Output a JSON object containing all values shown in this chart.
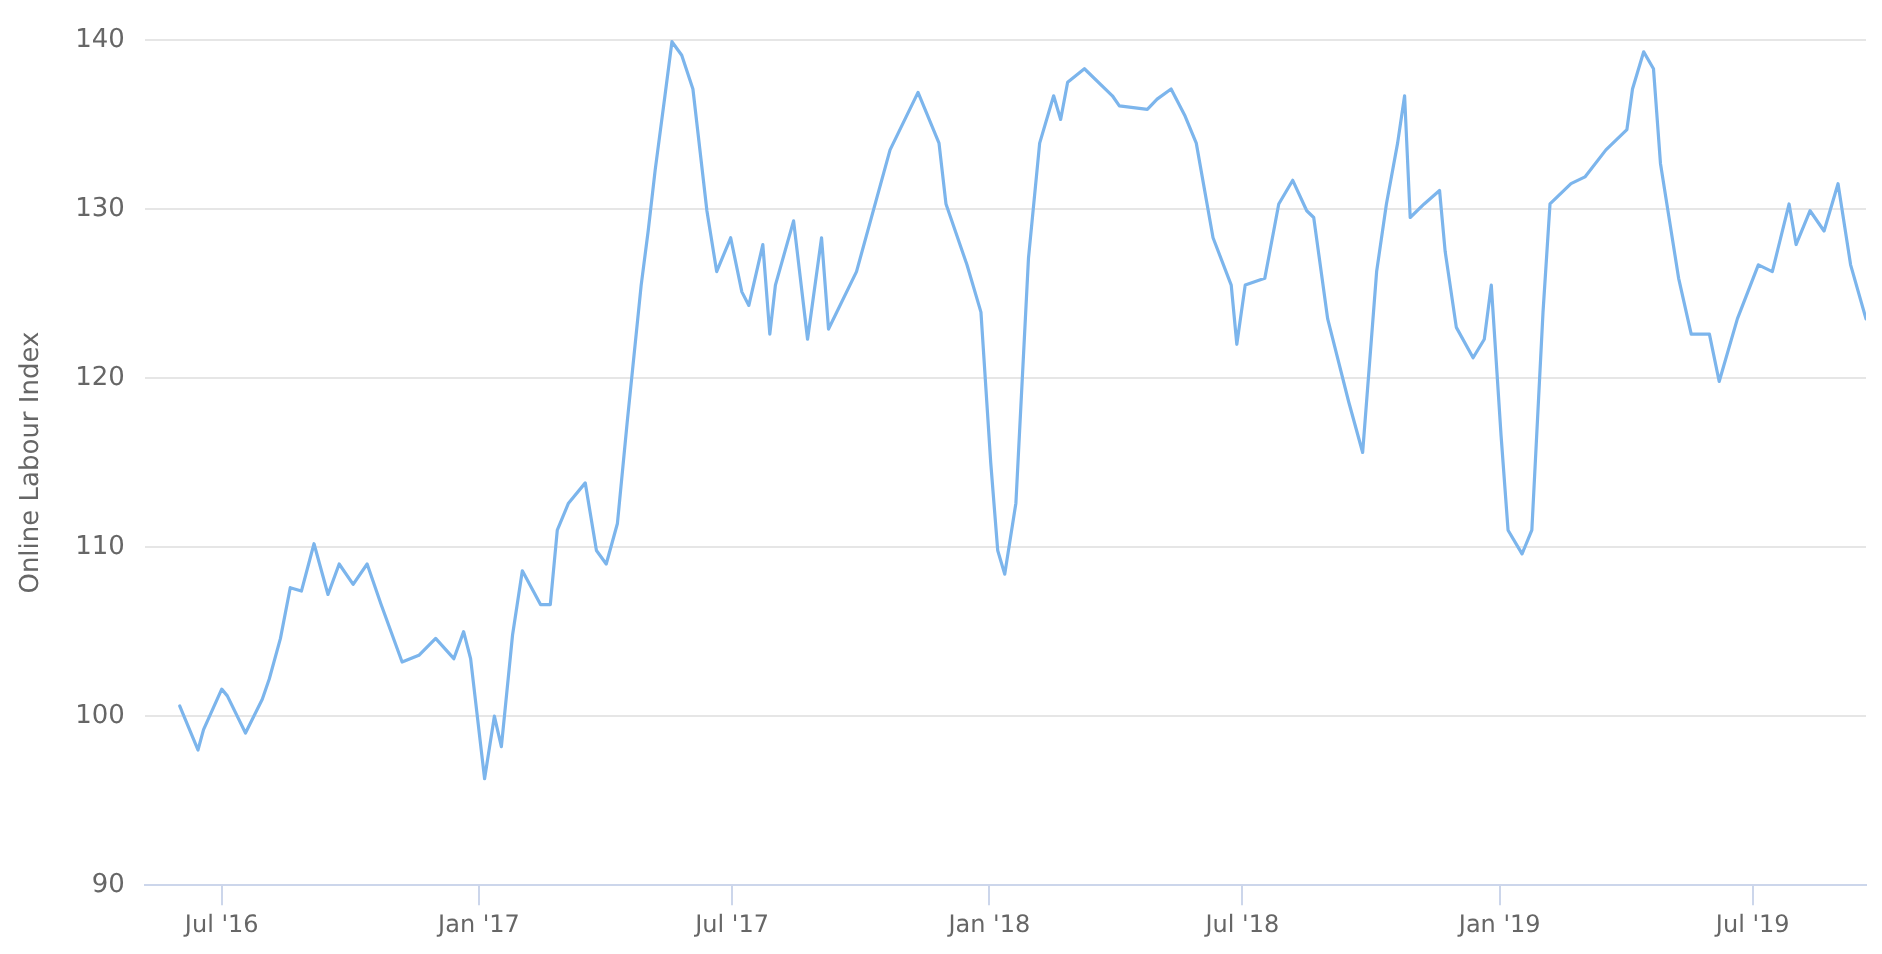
{
  "chart_data": {
    "type": "line",
    "ylabel": "Online Labour Index",
    "grid": "y",
    "legend": false,
    "marker": "none",
    "line_style": "solid",
    "xlim": [
      "2016-05-07",
      "2019-09-20"
    ],
    "ylim": [
      90,
      140
    ],
    "yticks": [
      90,
      100,
      110,
      120,
      130,
      140
    ],
    "xticks": [
      {
        "value": "2016-07-01",
        "label": "Jul '16"
      },
      {
        "value": "2017-01-01",
        "label": "Jan '17"
      },
      {
        "value": "2017-07-01",
        "label": "Jul '17"
      },
      {
        "value": "2018-01-01",
        "label": "Jan '18"
      },
      {
        "value": "2018-07-01",
        "label": "Jul '18"
      },
      {
        "value": "2019-01-01",
        "label": "Jan '19"
      },
      {
        "value": "2019-07-01",
        "label": "Jul '19"
      }
    ],
    "x": [
      "2016-06-01",
      "2016-06-14",
      "2016-06-18",
      "2016-07-01",
      "2016-07-05",
      "2016-07-18",
      "2016-07-30",
      "2016-08-04",
      "2016-08-12",
      "2016-08-19",
      "2016-08-27",
      "2016-09-05",
      "2016-09-15",
      "2016-09-23",
      "2016-10-03",
      "2016-10-13",
      "2016-10-23",
      "2016-11-07",
      "2016-11-19",
      "2016-12-01",
      "2016-12-14",
      "2016-12-21",
      "2016-12-26",
      "2017-01-05",
      "2017-01-12",
      "2017-01-17",
      "2017-01-25",
      "2017-02-01",
      "2017-02-14",
      "2017-02-21",
      "2017-02-26",
      "2017-03-06",
      "2017-03-18",
      "2017-03-26",
      "2017-04-02",
      "2017-04-10",
      "2017-04-17",
      "2017-04-27",
      "2017-05-02",
      "2017-05-07",
      "2017-05-14",
      "2017-05-19",
      "2017-05-26",
      "2017-06-03",
      "2017-06-13",
      "2017-06-20",
      "2017-06-28",
      "2017-06-30",
      "2017-07-08",
      "2017-07-13",
      "2017-07-23",
      "2017-07-28",
      "2017-08-01",
      "2017-08-14",
      "2017-08-24",
      "2017-09-03",
      "2017-09-08",
      "2017-09-28",
      "2017-10-22",
      "2017-11-11",
      "2017-11-26",
      "2017-12-01",
      "2017-12-16",
      "2017-12-26",
      "2018-01-02",
      "2018-01-07",
      "2018-01-12",
      "2018-01-20",
      "2018-01-29",
      "2018-02-06",
      "2018-02-16",
      "2018-02-21",
      "2018-02-26",
      "2018-03-10",
      "2018-03-30",
      "2018-04-04",
      "2018-04-24",
      "2018-05-01",
      "2018-05-11",
      "2018-05-21",
      "2018-05-29",
      "2018-06-10",
      "2018-06-23",
      "2018-06-27",
      "2018-07-03",
      "2018-07-17",
      "2018-07-27",
      "2018-08-06",
      "2018-08-16",
      "2018-08-21",
      "2018-08-31",
      "2018-09-15",
      "2018-09-25",
      "2018-10-05",
      "2018-10-12",
      "2018-10-20",
      "2018-10-25",
      "2018-10-29",
      "2018-11-08",
      "2018-11-19",
      "2018-11-23",
      "2018-12-01",
      "2018-12-13",
      "2018-12-21",
      "2018-12-26",
      "2019-01-02",
      "2019-01-07",
      "2019-01-17",
      "2019-01-24",
      "2019-02-01",
      "2019-02-06",
      "2019-02-21",
      "2019-03-03",
      "2019-03-18",
      "2019-04-02",
      "2019-04-06",
      "2019-04-14",
      "2019-04-21",
      "2019-04-26",
      "2019-05-09",
      "2019-05-18",
      "2019-05-31",
      "2019-06-07",
      "2019-06-20",
      "2019-07-05",
      "2019-07-15",
      "2019-07-27",
      "2019-08-01",
      "2019-08-11",
      "2019-08-21",
      "2019-08-31",
      "2019-09-09",
      "2019-09-20"
    ],
    "series": [
      {
        "color": "#7cb5ec",
        "values": [
          100.6,
          98.0,
          99.2,
          101.6,
          101.2,
          99.0,
          101.0,
          102.2,
          104.6,
          107.6,
          107.4,
          110.2,
          107.2,
          109.0,
          107.8,
          109.0,
          106.6,
          103.2,
          103.6,
          104.6,
          103.4,
          105.0,
          103.4,
          96.3,
          100.0,
          98.2,
          104.8,
          108.6,
          106.6,
          106.6,
          111.0,
          112.6,
          113.8,
          109.8,
          109.0,
          111.4,
          117.4,
          125.5,
          128.7,
          132.3,
          136.7,
          139.9,
          139.1,
          137.1,
          129.9,
          126.3,
          127.9,
          128.3,
          125.1,
          124.3,
          127.9,
          122.6,
          125.5,
          129.3,
          122.3,
          128.3,
          122.9,
          126.3,
          133.5,
          136.9,
          133.9,
          130.3,
          126.7,
          123.9,
          115.0,
          109.8,
          108.4,
          112.6,
          127.1,
          133.9,
          136.7,
          135.3,
          137.5,
          138.3,
          136.7,
          136.1,
          135.9,
          136.5,
          137.1,
          135.5,
          133.9,
          128.3,
          125.5,
          122.0,
          125.5,
          125.9,
          130.3,
          131.7,
          129.9,
          129.5,
          123.5,
          118.6,
          115.6,
          126.3,
          130.3,
          133.9,
          136.7,
          129.5,
          130.3,
          131.1,
          127.5,
          123.0,
          121.2,
          122.3,
          125.5,
          116.6,
          111.0,
          109.6,
          111.0,
          123.9,
          130.3,
          131.5,
          131.9,
          133.5,
          134.7,
          137.1,
          139.3,
          138.3,
          132.7,
          125.9,
          122.6,
          122.6,
          119.8,
          123.5,
          126.7,
          126.3,
          130.3,
          127.9,
          129.9,
          128.7,
          131.5,
          126.7,
          123.5
        ]
      }
    ]
  }
}
